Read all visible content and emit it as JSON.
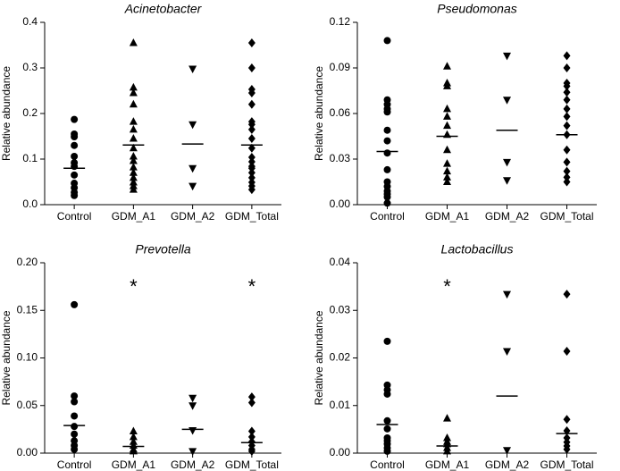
{
  "chart_data": [
    {
      "type": "strip",
      "title": "Acinetobacter",
      "y_label": "Relative abundance",
      "ylim": [
        0,
        0.4
      ],
      "yticks": [
        {
          "value": 0,
          "label": "0.0"
        },
        0.1,
        0.2,
        0.3,
        0.4
      ],
      "groups": [
        {
          "name": "Control",
          "marker": "circle",
          "mean": 0.08,
          "values": [
            0.187,
            0.155,
            0.149,
            0.13,
            0.106,
            0.092,
            0.084,
            0.065,
            0.047,
            0.037,
            0.027,
            0.02
          ]
        },
        {
          "name": "GDM_A1",
          "marker": "triangle-up",
          "mean": 0.131,
          "values": [
            0.355,
            0.257,
            0.245,
            0.22,
            0.182,
            0.165,
            0.145,
            0.124,
            0.106,
            0.096,
            0.082,
            0.07,
            0.059,
            0.049,
            0.041,
            0.033
          ]
        },
        {
          "name": "GDM_A2",
          "marker": "triangle-down",
          "mean": 0.133,
          "values": [
            0.298,
            0.176,
            0.08,
            0.041
          ]
        },
        {
          "name": "GDM_Total",
          "marker": "diamond",
          "mean": 0.131,
          "values": [
            0.355,
            0.3,
            0.253,
            0.245,
            0.22,
            0.182,
            0.176,
            0.165,
            0.145,
            0.124,
            0.104,
            0.094,
            0.084,
            0.08,
            0.07,
            0.059,
            0.049,
            0.041,
            0.033
          ]
        }
      ]
    },
    {
      "type": "strip",
      "title": "Pseudomonas",
      "y_label": "Relative abundance",
      "ylim": [
        0,
        0.12
      ],
      "yticks": [
        {
          "value": 0,
          "label": "0.00"
        },
        {
          "value": 0.03,
          "label": "0.03"
        },
        {
          "value": 0.06,
          "label": "0.06"
        },
        {
          "value": 0.09,
          "label": "0.09"
        },
        {
          "value": 0.12,
          "label": "0.12"
        }
      ],
      "groups": [
        {
          "name": "Control",
          "marker": "circle",
          "mean": 0.035,
          "values": [
            0.108,
            0.069,
            0.066,
            0.063,
            0.061,
            0.049,
            0.042,
            0.034,
            0.023,
            0.015,
            0.012,
            0.009,
            0.007,
            0.005,
            0.001
          ]
        },
        {
          "name": "GDM_A1",
          "marker": "triangle-up",
          "mean": 0.045,
          "values": [
            0.091,
            0.08,
            0.078,
            0.063,
            0.058,
            0.052,
            0.046,
            0.036,
            0.027,
            0.022,
            0.018,
            0.015
          ]
        },
        {
          "name": "GDM_A2",
          "marker": "triangle-down",
          "mean": 0.049,
          "values": [
            0.098,
            0.069,
            0.028,
            0.016
          ]
        },
        {
          "name": "GDM_Total",
          "marker": "diamond",
          "mean": 0.046,
          "values": [
            0.098,
            0.09,
            0.08,
            0.078,
            0.074,
            0.069,
            0.063,
            0.058,
            0.052,
            0.046,
            0.036,
            0.028,
            0.022,
            0.018,
            0.015
          ]
        }
      ]
    },
    {
      "type": "strip",
      "title": "Prevotella",
      "y_label": "Relative abundance",
      "ylim": [
        0,
        0.2
      ],
      "yticks": [
        {
          "value": 0,
          "label": "0.00"
        },
        0.05,
        {
          "value": 0.1,
          "label": "0.10"
        },
        0.15,
        {
          "value": 0.2,
          "label": "0.20"
        }
      ],
      "groups": [
        {
          "name": "Control",
          "marker": "circle",
          "mean": 0.029,
          "values": [
            0.156,
            0.06,
            0.054,
            0.039,
            0.028,
            0.02,
            0.013,
            0.008,
            0.004
          ]
        },
        {
          "name": "GDM_A1",
          "marker": "triangle-up",
          "mean": 0.007,
          "annotation": "*",
          "values": [
            0.023,
            0.017,
            0.012,
            0.008,
            0.004,
            0.002
          ]
        },
        {
          "name": "GDM_A2",
          "marker": "triangle-down",
          "mean": 0.025,
          "values": [
            0.058,
            0.05,
            0.024,
            0.002
          ]
        },
        {
          "name": "GDM_Total",
          "marker": "diamond",
          "mean": 0.011,
          "annotation": "*",
          "values": [
            0.059,
            0.053,
            0.023,
            0.017,
            0.012,
            0.008,
            0.004,
            0.002
          ]
        }
      ]
    },
    {
      "type": "strip",
      "title": "Lactobacillus",
      "y_label": "Relative abundance",
      "ylim": [
        0,
        0.04
      ],
      "yticks": [
        {
          "value": 0,
          "label": "0.00"
        },
        0.01,
        0.02,
        0.03,
        0.04
      ],
      "groups": [
        {
          "name": "Control",
          "marker": "circle",
          "mean": 0.006,
          "values": [
            0.0235,
            0.0143,
            0.0133,
            0.0124,
            0.0068,
            0.0051,
            0.0032,
            0.0026,
            0.0019,
            0.0011,
            0.0004
          ]
        },
        {
          "name": "GDM_A1",
          "marker": "triangle-up",
          "mean": 0.0015,
          "annotation": "*",
          "values": [
            0.0073,
            0.0032,
            0.0024,
            0.0019,
            0.0011,
            0.0004
          ]
        },
        {
          "name": "GDM_A2",
          "marker": "triangle-down",
          "mean": 0.012,
          "values": [
            0.0334,
            0.0214,
            0.0006
          ]
        },
        {
          "name": "GDM_Total",
          "marker": "diamond",
          "mean": 0.0041,
          "values": [
            0.0334,
            0.0214,
            0.0071,
            0.0047,
            0.0032,
            0.0023,
            0.0015,
            0.0008
          ]
        }
      ]
    }
  ]
}
